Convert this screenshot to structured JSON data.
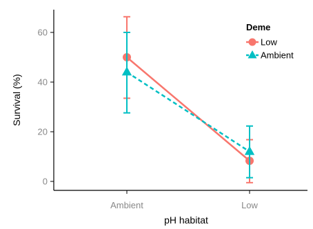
{
  "chart_data": {
    "type": "line",
    "xlabel": "pH habitat",
    "ylabel": "Survival (%)",
    "categories": [
      "Ambient",
      "Low"
    ],
    "ylim": [
      -3,
      70
    ],
    "yticks": [
      0,
      20,
      40,
      60
    ],
    "grid": false,
    "legend": {
      "title": "Deme",
      "placement": "top-right"
    },
    "series": [
      {
        "name": "Low",
        "color": "#F8766D",
        "marker": "circle",
        "linestyle": "solid",
        "values": [
          50,
          8.3
        ],
        "err_low": [
          33.5,
          -0.5
        ],
        "err_high": [
          66.3,
          16.8
        ]
      },
      {
        "name": "Ambient",
        "color": "#00BFC4",
        "marker": "triangle",
        "linestyle": "dashed",
        "values": [
          44,
          12
        ],
        "err_low": [
          27.6,
          1.5
        ],
        "err_high": [
          60,
          22.3
        ]
      }
    ]
  }
}
